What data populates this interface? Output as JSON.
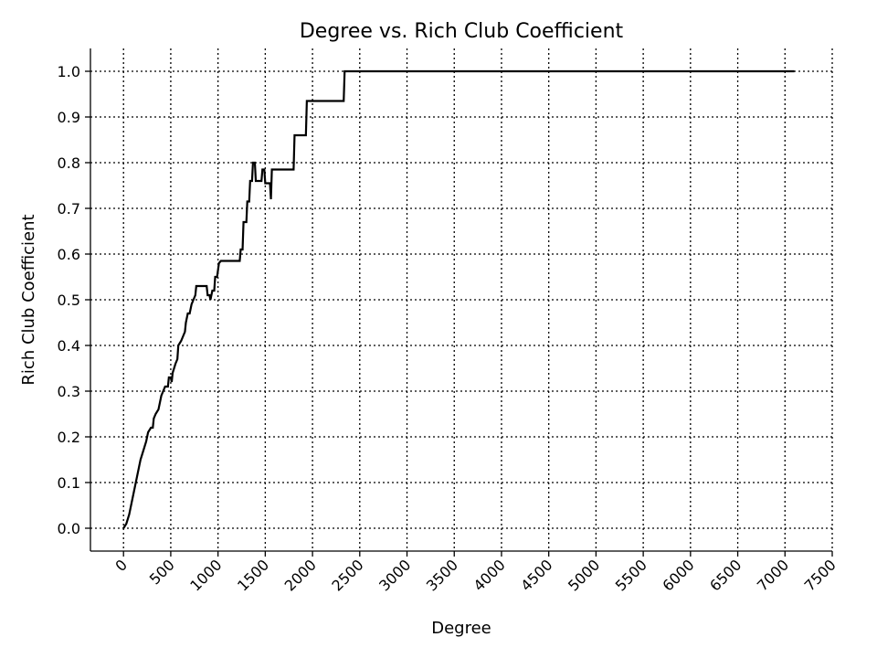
{
  "chart_data": {
    "type": "line",
    "title": "Degree vs. Rich Club Coefficient",
    "xlabel": "Degree",
    "ylabel": "Rich Club Coefficient",
    "xlim": [
      -350,
      7500
    ],
    "ylim": [
      -0.05,
      1.05
    ],
    "grid": true,
    "grid_style": "dotted",
    "line_color": "#000000",
    "x_ticks": [
      0,
      500,
      1000,
      1500,
      2000,
      2500,
      3000,
      3500,
      4000,
      4500,
      5000,
      5500,
      6000,
      6500,
      7000,
      7500
    ],
    "x_tick_labels": [
      "0",
      "500",
      "1000",
      "1500",
      "2000",
      "2500",
      "3000",
      "3500",
      "4000",
      "4500",
      "5000",
      "5500",
      "6000",
      "6500",
      "7000",
      "7500"
    ],
    "y_ticks": [
      0.0,
      0.1,
      0.2,
      0.3,
      0.4,
      0.5,
      0.6,
      0.7,
      0.8,
      0.9,
      1.0
    ],
    "y_tick_labels": [
      "0.0",
      "0.1",
      "0.2",
      "0.3",
      "0.4",
      "0.5",
      "0.6",
      "0.7",
      "0.8",
      "0.9",
      "1.0"
    ],
    "series": [
      {
        "points": [
          [
            0,
            0.0
          ],
          [
            30,
            0.01
          ],
          [
            60,
            0.03
          ],
          [
            90,
            0.06
          ],
          [
            120,
            0.09
          ],
          [
            150,
            0.12
          ],
          [
            180,
            0.15
          ],
          [
            210,
            0.17
          ],
          [
            240,
            0.19
          ],
          [
            260,
            0.21
          ],
          [
            290,
            0.22
          ],
          [
            310,
            0.22
          ],
          [
            320,
            0.24
          ],
          [
            340,
            0.25
          ],
          [
            370,
            0.26
          ],
          [
            390,
            0.28
          ],
          [
            400,
            0.29
          ],
          [
            420,
            0.3
          ],
          [
            440,
            0.31
          ],
          [
            470,
            0.31
          ],
          [
            480,
            0.33
          ],
          [
            500,
            0.33
          ],
          [
            510,
            0.32
          ],
          [
            520,
            0.34
          ],
          [
            550,
            0.36
          ],
          [
            570,
            0.37
          ],
          [
            580,
            0.4
          ],
          [
            610,
            0.41
          ],
          [
            630,
            0.42
          ],
          [
            650,
            0.43
          ],
          [
            660,
            0.45
          ],
          [
            680,
            0.47
          ],
          [
            700,
            0.47
          ],
          [
            720,
            0.49
          ],
          [
            740,
            0.5
          ],
          [
            760,
            0.51
          ],
          [
            770,
            0.53
          ],
          [
            800,
            0.53
          ],
          [
            880,
            0.53
          ],
          [
            890,
            0.51
          ],
          [
            910,
            0.51
          ],
          [
            920,
            0.5
          ],
          [
            940,
            0.52
          ],
          [
            960,
            0.52
          ],
          [
            970,
            0.55
          ],
          [
            990,
            0.55
          ],
          [
            1010,
            0.58
          ],
          [
            1030,
            0.585
          ],
          [
            1230,
            0.585
          ],
          [
            1240,
            0.61
          ],
          [
            1260,
            0.61
          ],
          [
            1270,
            0.67
          ],
          [
            1300,
            0.67
          ],
          [
            1310,
            0.715
          ],
          [
            1330,
            0.715
          ],
          [
            1340,
            0.76
          ],
          [
            1360,
            0.76
          ],
          [
            1370,
            0.8
          ],
          [
            1390,
            0.8
          ],
          [
            1400,
            0.76
          ],
          [
            1460,
            0.76
          ],
          [
            1470,
            0.785
          ],
          [
            1490,
            0.785
          ],
          [
            1500,
            0.755
          ],
          [
            1550,
            0.755
          ],
          [
            1560,
            0.72
          ],
          [
            1570,
            0.785
          ],
          [
            1800,
            0.785
          ],
          [
            1810,
            0.86
          ],
          [
            1930,
            0.86
          ],
          [
            1940,
            0.935
          ],
          [
            2330,
            0.935
          ],
          [
            2340,
            1.0
          ],
          [
            7100,
            1.0
          ]
        ]
      }
    ]
  }
}
